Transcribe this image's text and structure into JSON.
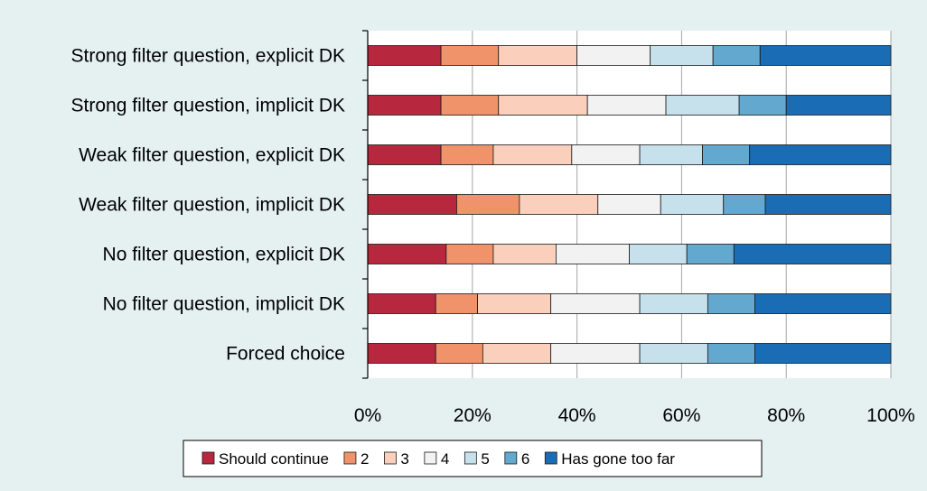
{
  "chart_data": {
    "type": "bar",
    "orientation": "horizontal",
    "stacking": "percent",
    "categories": [
      "Strong filter question, explicit DK",
      "Strong filter question, implicit DK",
      "Weak filter question, explicit DK",
      "Weak filter question, implicit DK",
      "No filter question, explicit DK",
      "No filter question, implicit DK",
      "Forced choice"
    ],
    "series": [
      {
        "name": "Should continue",
        "color": "#b7283e",
        "values": [
          14,
          14,
          14,
          17,
          15,
          13,
          13
        ]
      },
      {
        "name": "2",
        "color": "#f0926a",
        "values": [
          11,
          11,
          10,
          12,
          9,
          8,
          9
        ]
      },
      {
        "name": "3",
        "color": "#fad0bc",
        "values": [
          15,
          17,
          15,
          15,
          12,
          14,
          13
        ]
      },
      {
        "name": "4",
        "color": "#f2f2f2",
        "values": [
          14,
          15,
          13,
          12,
          14,
          17,
          17
        ]
      },
      {
        "name": "5",
        "color": "#c7e1ec",
        "values": [
          12,
          14,
          12,
          12,
          11,
          13,
          13
        ]
      },
      {
        "name": "6",
        "color": "#62a8cf",
        "values": [
          9,
          9,
          9,
          8,
          9,
          9,
          9
        ]
      },
      {
        "name": "Has gone too far",
        "color": "#1a6db4",
        "values": [
          25,
          20,
          27,
          24,
          30,
          26,
          26
        ]
      }
    ],
    "x_ticks": [
      "0%",
      "20%",
      "40%",
      "60%",
      "80%",
      "100%"
    ],
    "xlim": [
      0,
      100
    ],
    "grid": "vertical",
    "legend": "bottom"
  }
}
